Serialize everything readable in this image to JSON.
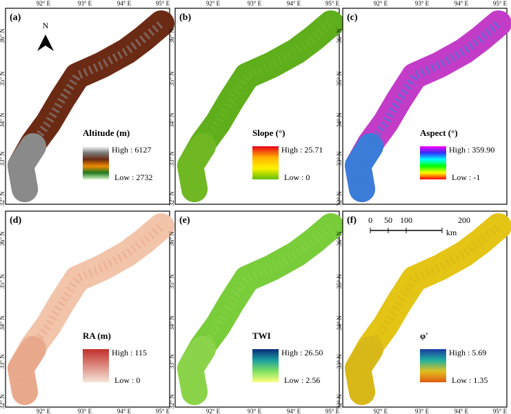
{
  "axes": {
    "lon": [
      "92° E",
      "93° E",
      "94° E",
      "95° E"
    ],
    "lat": [
      "32° N",
      "33° N",
      "34° N",
      "35° N",
      "36° N"
    ]
  },
  "north": "N",
  "scale": {
    "ticks": [
      "0",
      "50",
      "100",
      "200"
    ],
    "unit": "km"
  },
  "panels": [
    {
      "label": "(a)",
      "title": "Altitude (m)",
      "high": "High : 6127",
      "low": "Low : 2732",
      "ramp": [
        "#ffffff",
        "#7a7a7a",
        "#6b2a14",
        "#f08a00",
        "#1f7a1f",
        "#d8f5c8"
      ],
      "fill": "#6b2a14",
      "tail": "#8a8a8a"
    },
    {
      "label": "(b)",
      "title": "Slope (°)",
      "high": "High : 25.71",
      "low": "Low : 0",
      "ramp": [
        "#e8001a",
        "#ffb000",
        "#fff200",
        "#5fbf00"
      ],
      "fill": "#5fae1c",
      "tail": "#6fb823"
    },
    {
      "label": "(c)",
      "title": "Aspect (°)",
      "high": "High : 359.90",
      "low": "Low : -1",
      "ramp": [
        "#ff00ff",
        "#3030ff",
        "#00ffff",
        "#00ff00",
        "#ffff00",
        "#ff0000"
      ],
      "fill": "#c33cc8",
      "tail": "#3a7cd8"
    },
    {
      "label": "(d)",
      "title": "RA (m)",
      "high": "High : 115",
      "low": "Low : 0",
      "ramp": [
        "#c0302a",
        "#f7e4d8"
      ],
      "fill": "#f2c4aa",
      "tail": "#e9a98c"
    },
    {
      "label": "(e)",
      "title": "TWI",
      "high": "High : 26.50",
      "low": "Low : 2.56",
      "ramp": [
        "#0a2a7a",
        "#1aa0a0",
        "#7fe060",
        "#ffff80"
      ],
      "fill": "#79cc3a",
      "tail": "#8bd44a"
    },
    {
      "label": "(f)",
      "title": "φ'",
      "high": "High : 5.69",
      "low": "Low : 1.35",
      "ramp": [
        "#1a3aa0",
        "#20b0a0",
        "#e0c020",
        "#e05a10"
      ],
      "fill": "#e4c414",
      "tail": "#d8b818"
    }
  ]
}
